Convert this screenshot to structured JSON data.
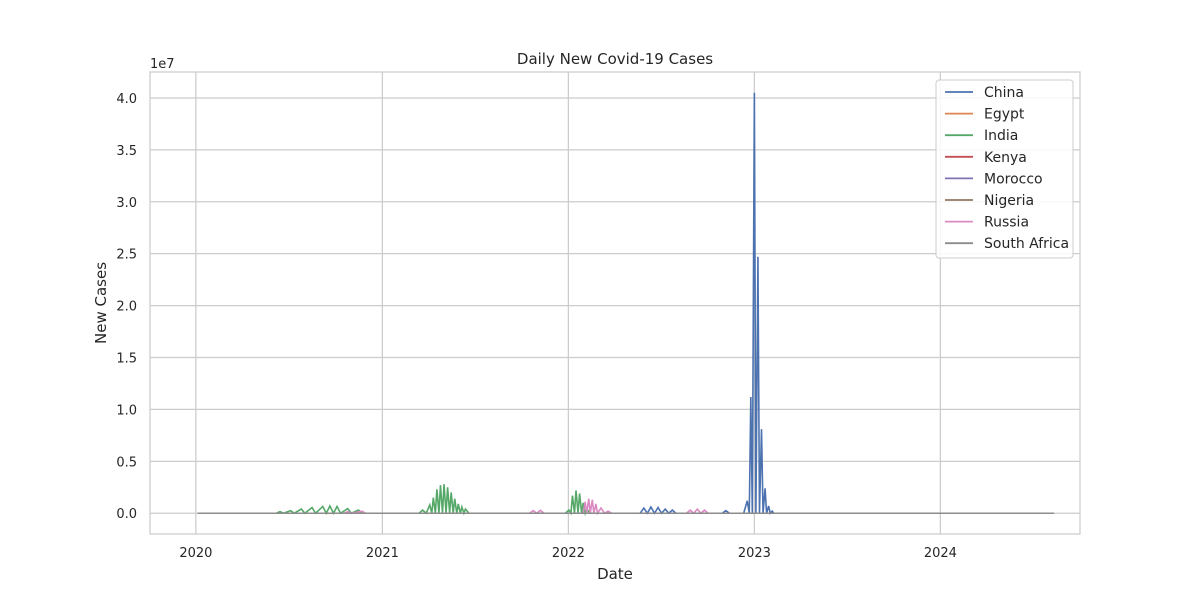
{
  "chart_data": {
    "type": "line",
    "title": "Daily New Covid-19 Cases",
    "xlabel": "Date",
    "ylabel": "New Cases",
    "y_offset_label": "1e7",
    "y_scale": 10000000,
    "xlim": [
      "2019-10-03",
      "2024-10-01"
    ],
    "ylim": [
      -2000000,
      42500000
    ],
    "x_ticks": [
      {
        "date": "2020-01-01",
        "label": "2020"
      },
      {
        "date": "2021-01-01",
        "label": "2021"
      },
      {
        "date": "2022-01-01",
        "label": "2022"
      },
      {
        "date": "2023-01-01",
        "label": "2023"
      },
      {
        "date": "2024-01-01",
        "label": "2024"
      }
    ],
    "y_ticks": [
      {
        "value": 0,
        "label": "0.0"
      },
      {
        "value": 5000000,
        "label": "0.5"
      },
      {
        "value": 10000000,
        "label": "1.0"
      },
      {
        "value": 15000000,
        "label": "1.5"
      },
      {
        "value": 20000000,
        "label": "2.0"
      },
      {
        "value": 25000000,
        "label": "2.5"
      },
      {
        "value": 30000000,
        "label": "3.0"
      },
      {
        "value": 35000000,
        "label": "3.5"
      },
      {
        "value": 40000000,
        "label": "4.0"
      }
    ],
    "grid": true,
    "legend_position": "top-right",
    "series": [
      {
        "name": "China",
        "color": "#4c72b0",
        "points": [
          [
            "2020-01-05",
            0
          ],
          [
            "2022-05-22",
            0
          ],
          [
            "2022-05-29",
            500000
          ],
          [
            "2022-06-05",
            0
          ],
          [
            "2022-06-12",
            600000
          ],
          [
            "2022-06-19",
            0
          ],
          [
            "2022-06-26",
            550000
          ],
          [
            "2022-07-03",
            0
          ],
          [
            "2022-07-10",
            400000
          ],
          [
            "2022-07-17",
            0
          ],
          [
            "2022-07-24",
            300000
          ],
          [
            "2022-07-31",
            0
          ],
          [
            "2022-10-30",
            0
          ],
          [
            "2022-11-06",
            250000
          ],
          [
            "2022-11-13",
            0
          ],
          [
            "2022-12-11",
            0
          ],
          [
            "2022-12-18",
            1200000
          ],
          [
            "2022-12-22",
            0
          ],
          [
            "2022-12-25",
            11200000
          ],
          [
            "2022-12-28",
            0
          ],
          [
            "2023-01-01",
            40500000
          ],
          [
            "2023-01-04",
            0
          ],
          [
            "2023-01-08",
            24700000
          ],
          [
            "2023-01-11",
            0
          ],
          [
            "2023-01-15",
            8100000
          ],
          [
            "2023-01-18",
            0
          ],
          [
            "2023-01-22",
            2400000
          ],
          [
            "2023-01-25",
            0
          ],
          [
            "2023-01-29",
            700000
          ],
          [
            "2023-02-01",
            0
          ],
          [
            "2023-02-05",
            200000
          ],
          [
            "2023-02-08",
            0
          ],
          [
            "2024-08-11",
            0
          ]
        ]
      },
      {
        "name": "Egypt",
        "color": "#dd8452",
        "points": [
          [
            "2020-01-05",
            0
          ],
          [
            "2024-08-11",
            0
          ]
        ]
      },
      {
        "name": "India",
        "color": "#55a868",
        "points": [
          [
            "2020-01-05",
            0
          ],
          [
            "2020-06-07",
            0
          ],
          [
            "2020-06-14",
            150000
          ],
          [
            "2020-06-21",
            0
          ],
          [
            "2020-07-05",
            250000
          ],
          [
            "2020-07-12",
            0
          ],
          [
            "2020-07-26",
            400000
          ],
          [
            "2020-08-02",
            0
          ],
          [
            "2020-08-16",
            550000
          ],
          [
            "2020-08-23",
            0
          ],
          [
            "2020-09-06",
            650000
          ],
          [
            "2020-09-13",
            0
          ],
          [
            "2020-09-20",
            700000
          ],
          [
            "2020-09-27",
            0
          ],
          [
            "2020-10-04",
            650000
          ],
          [
            "2020-10-11",
            0
          ],
          [
            "2020-10-25",
            450000
          ],
          [
            "2020-11-01",
            0
          ],
          [
            "2020-11-15",
            300000
          ],
          [
            "2020-11-22",
            0
          ],
          [
            "2021-03-14",
            0
          ],
          [
            "2021-03-21",
            300000
          ],
          [
            "2021-03-28",
            0
          ],
          [
            "2021-04-04",
            800000
          ],
          [
            "2021-04-08",
            0
          ],
          [
            "2021-04-11",
            1500000
          ],
          [
            "2021-04-15",
            0
          ],
          [
            "2021-04-18",
            2300000
          ],
          [
            "2021-04-22",
            0
          ],
          [
            "2021-04-25",
            2700000
          ],
          [
            "2021-04-29",
            0
          ],
          [
            "2021-05-02",
            2800000
          ],
          [
            "2021-05-06",
            0
          ],
          [
            "2021-05-09",
            2500000
          ],
          [
            "2021-05-13",
            0
          ],
          [
            "2021-05-16",
            2000000
          ],
          [
            "2021-05-20",
            0
          ],
          [
            "2021-05-23",
            1400000
          ],
          [
            "2021-05-27",
            0
          ],
          [
            "2021-05-30",
            900000
          ],
          [
            "2021-06-03",
            0
          ],
          [
            "2021-06-06",
            600000
          ],
          [
            "2021-06-10",
            0
          ],
          [
            "2021-06-13",
            400000
          ],
          [
            "2021-06-20",
            0
          ],
          [
            "2021-12-26",
            0
          ],
          [
            "2022-01-02",
            300000
          ],
          [
            "2022-01-06",
            0
          ],
          [
            "2022-01-09",
            1700000
          ],
          [
            "2022-01-13",
            0
          ],
          [
            "2022-01-16",
            2200000
          ],
          [
            "2022-01-20",
            0
          ],
          [
            "2022-01-23",
            1900000
          ],
          [
            "2022-01-27",
            0
          ],
          [
            "2022-01-30",
            1000000
          ],
          [
            "2022-02-03",
            0
          ],
          [
            "2022-02-06",
            400000
          ],
          [
            "2022-02-13",
            0
          ],
          [
            "2024-08-11",
            0
          ]
        ]
      },
      {
        "name": "Kenya",
        "color": "#c44e52",
        "points": [
          [
            "2020-01-05",
            0
          ],
          [
            "2024-08-11",
            0
          ]
        ]
      },
      {
        "name": "Morocco",
        "color": "#8172b3",
        "points": [
          [
            "2020-01-05",
            0
          ],
          [
            "2024-08-11",
            0
          ]
        ]
      },
      {
        "name": "Nigeria",
        "color": "#937860",
        "points": [
          [
            "2020-01-05",
            0
          ],
          [
            "2024-08-11",
            0
          ]
        ]
      },
      {
        "name": "Russia",
        "color": "#da8bc3",
        "points": [
          [
            "2020-01-05",
            0
          ],
          [
            "2020-10-18",
            0
          ],
          [
            "2020-10-25",
            150000
          ],
          [
            "2020-11-01",
            0
          ],
          [
            "2020-11-22",
            200000
          ],
          [
            "2020-11-29",
            0
          ],
          [
            "2021-10-17",
            0
          ],
          [
            "2021-10-24",
            250000
          ],
          [
            "2021-10-31",
            0
          ],
          [
            "2021-11-07",
            280000
          ],
          [
            "2021-11-14",
            0
          ],
          [
            "2022-01-30",
            0
          ],
          [
            "2022-02-03",
            1100000
          ],
          [
            "2022-02-06",
            0
          ],
          [
            "2022-02-10",
            1400000
          ],
          [
            "2022-02-13",
            0
          ],
          [
            "2022-02-17",
            1300000
          ],
          [
            "2022-02-20",
            0
          ],
          [
            "2022-02-24",
            900000
          ],
          [
            "2022-02-27",
            0
          ],
          [
            "2022-03-06",
            500000
          ],
          [
            "2022-03-13",
            0
          ],
          [
            "2022-03-20",
            200000
          ],
          [
            "2022-03-27",
            0
          ],
          [
            "2022-08-21",
            0
          ],
          [
            "2022-08-28",
            300000
          ],
          [
            "2022-09-04",
            0
          ],
          [
            "2022-09-11",
            400000
          ],
          [
            "2022-09-18",
            0
          ],
          [
            "2022-09-25",
            300000
          ],
          [
            "2022-10-02",
            0
          ],
          [
            "2024-08-11",
            0
          ]
        ]
      },
      {
        "name": "South Africa",
        "color": "#8c8c8c",
        "points": [
          [
            "2020-01-05",
            0
          ],
          [
            "2024-08-11",
            0
          ]
        ]
      }
    ]
  }
}
